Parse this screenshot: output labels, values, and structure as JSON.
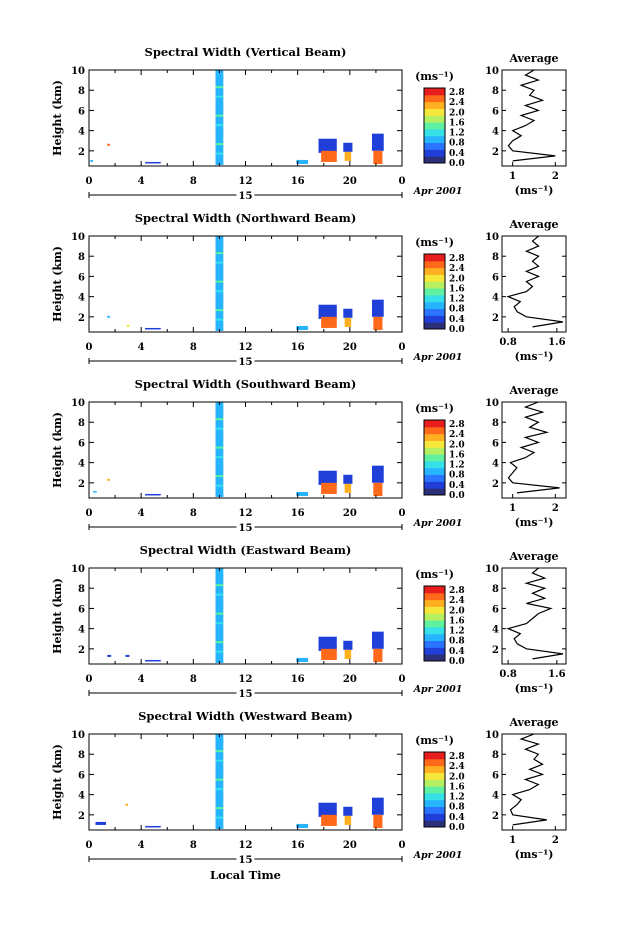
{
  "colorbar": {
    "unit": "(ms⁻¹)",
    "ticks": [
      "2.8",
      "2.4",
      "2.0",
      "1.6",
      "1.2",
      "0.8",
      "0.4",
      "0.0"
    ],
    "colors": [
      "#2b2f7a",
      "#1f3fd8",
      "#2a74ff",
      "#27b4ff",
      "#35e0e8",
      "#5ff0a0",
      "#b6f060",
      "#f6e83a",
      "#ffb020",
      "#ff6a1a",
      "#e81e1e"
    ]
  },
  "shared": {
    "y_label": "Height (km)",
    "x_ticks": [
      "0",
      "4",
      "8",
      "12",
      "16",
      "20",
      "0"
    ],
    "date_tick": "15",
    "date_label": "Apr 2001",
    "x_title": "Local Time",
    "avg_title": "Average",
    "avg_unit": "(ms⁻¹)"
  },
  "chart_data": [
    {
      "type": "heatmap",
      "title": "Spectral Width (Vertical Beam)",
      "ylabel": "Height (km)",
      "xlabel": "Local Time",
      "y_ticks": [
        "2",
        "4",
        "6",
        "8",
        "10"
      ],
      "ylim": [
        0.5,
        10
      ],
      "xlim": [
        0,
        24
      ],
      "x_ticks": [
        "0",
        "4",
        "8",
        "12",
        "16",
        "20",
        "0"
      ],
      "value_range": [
        0.0,
        3.0
      ],
      "blobs": [
        {
          "t0": 9.7,
          "t1": 10.3,
          "h0": 0.6,
          "h1": 10.0,
          "v": 0.9
        },
        {
          "t0": 0.1,
          "t1": 0.3,
          "h0": 0.9,
          "h1": 1.1,
          "v": 1.0
        },
        {
          "t0": 1.4,
          "t1": 1.6,
          "h0": 2.5,
          "h1": 2.7,
          "v": 2.6
        },
        {
          "t0": 4.3,
          "t1": 5.5,
          "h0": 0.8,
          "h1": 0.9,
          "v": 0.4
        },
        {
          "t0": 15.9,
          "t1": 16.8,
          "h0": 0.7,
          "h1": 1.1,
          "v": 1.0
        },
        {
          "t0": 17.6,
          "t1": 19.0,
          "h0": 1.8,
          "h1": 3.2,
          "v": 0.3
        },
        {
          "t0": 17.8,
          "t1": 19.0,
          "h0": 0.9,
          "h1": 2.0,
          "v": 2.5
        },
        {
          "t0": 19.5,
          "t1": 20.2,
          "h0": 1.9,
          "h1": 2.8,
          "v": 0.3
        },
        {
          "t0": 19.6,
          "t1": 20.1,
          "h0": 1.0,
          "h1": 1.9,
          "v": 2.2
        },
        {
          "t0": 21.7,
          "t1": 22.6,
          "h0": 2.0,
          "h1": 3.7,
          "v": 0.3
        },
        {
          "t0": 21.8,
          "t1": 22.5,
          "h0": 0.7,
          "h1": 2.0,
          "v": 2.6
        }
      ],
      "average": {
        "xlim": [
          0.75,
          2.25
        ],
        "x_ticks": [
          {
            "v": 1,
            "label": "1"
          },
          {
            "v": 2,
            "label": "2"
          }
        ],
        "heights": [
          1.0,
          1.5,
          2.0,
          2.5,
          3.0,
          3.5,
          4.0,
          4.5,
          5.0,
          5.5,
          6.0,
          6.5,
          7.0,
          7.5,
          8.0,
          8.5,
          9.0,
          9.5,
          10.0
        ],
        "values": [
          1.0,
          2.0,
          1.0,
          0.9,
          1.0,
          1.2,
          1.0,
          1.3,
          1.5,
          1.2,
          1.6,
          1.3,
          1.7,
          1.4,
          1.5,
          1.2,
          1.6,
          1.3,
          1.5
        ]
      }
    },
    {
      "type": "heatmap",
      "title": "Spectral Width (Northward Beam)",
      "ylabel": "Height (km)",
      "xlabel": "Local Time",
      "y_ticks": [
        "2",
        "4",
        "6",
        "8",
        "10"
      ],
      "ylim": [
        0.5,
        10
      ],
      "xlim": [
        0,
        24
      ],
      "x_ticks": [
        "0",
        "4",
        "8",
        "12",
        "16",
        "20",
        "0"
      ],
      "value_range": [
        0.0,
        3.0
      ],
      "blobs": [
        {
          "t0": 9.7,
          "t1": 10.3,
          "h0": 0.6,
          "h1": 10.0,
          "v": 0.9
        },
        {
          "t0": 1.4,
          "t1": 1.6,
          "h0": 1.9,
          "h1": 2.1,
          "v": 1.0
        },
        {
          "t0": 2.9,
          "t1": 3.1,
          "h0": 1.0,
          "h1": 1.2,
          "v": 2.0
        },
        {
          "t0": 4.3,
          "t1": 5.5,
          "h0": 0.8,
          "h1": 0.9,
          "v": 0.4
        },
        {
          "t0": 15.9,
          "t1": 16.8,
          "h0": 0.7,
          "h1": 1.1,
          "v": 1.0
        },
        {
          "t0": 17.6,
          "t1": 19.0,
          "h0": 1.8,
          "h1": 3.2,
          "v": 0.3
        },
        {
          "t0": 17.8,
          "t1": 19.0,
          "h0": 0.9,
          "h1": 2.0,
          "v": 2.5
        },
        {
          "t0": 19.5,
          "t1": 20.2,
          "h0": 1.9,
          "h1": 2.8,
          "v": 0.3
        },
        {
          "t0": 19.6,
          "t1": 20.1,
          "h0": 1.0,
          "h1": 1.9,
          "v": 2.2
        },
        {
          "t0": 21.7,
          "t1": 22.6,
          "h0": 2.0,
          "h1": 3.7,
          "v": 0.3
        },
        {
          "t0": 21.8,
          "t1": 22.5,
          "h0": 0.7,
          "h1": 2.0,
          "v": 2.6
        }
      ],
      "average": {
        "xlim": [
          0.7,
          1.75
        ],
        "x_ticks": [
          {
            "v": 0.8,
            "label": "0.8"
          },
          {
            "v": 1.6,
            "label": "1.6"
          }
        ],
        "heights": [
          1.0,
          1.5,
          2.0,
          2.5,
          3.0,
          3.5,
          4.0,
          4.5,
          5.0,
          5.5,
          6.0,
          6.5,
          7.0,
          7.5,
          8.0,
          8.5,
          9.0,
          9.5,
          10.0
        ],
        "values": [
          1.2,
          1.7,
          1.1,
          0.95,
          0.9,
          1.0,
          0.8,
          1.1,
          1.2,
          1.1,
          1.3,
          1.1,
          1.3,
          1.2,
          1.3,
          1.1,
          1.3,
          1.2,
          1.3
        ]
      }
    },
    {
      "type": "heatmap",
      "title": "Spectral Width (Southward Beam)",
      "ylabel": "Height (km)",
      "xlabel": "Local Time",
      "y_ticks": [
        "2",
        "4",
        "6",
        "8",
        "10"
      ],
      "ylim": [
        0.5,
        10
      ],
      "xlim": [
        0,
        24
      ],
      "x_ticks": [
        "0",
        "4",
        "8",
        "12",
        "16",
        "20",
        "0"
      ],
      "value_range": [
        0.0,
        3.0
      ],
      "blobs": [
        {
          "t0": 9.7,
          "t1": 10.3,
          "h0": 0.6,
          "h1": 10.0,
          "v": 0.9
        },
        {
          "t0": 0.3,
          "t1": 0.6,
          "h0": 1.1,
          "h1": 1.2,
          "v": 1.0
        },
        {
          "t0": 1.4,
          "t1": 1.6,
          "h0": 2.2,
          "h1": 2.4,
          "v": 2.3
        },
        {
          "t0": 4.3,
          "t1": 5.5,
          "h0": 0.8,
          "h1": 0.9,
          "v": 0.4
        },
        {
          "t0": 15.9,
          "t1": 16.8,
          "h0": 0.7,
          "h1": 1.1,
          "v": 1.0
        },
        {
          "t0": 17.6,
          "t1": 19.0,
          "h0": 1.8,
          "h1": 3.2,
          "v": 0.3
        },
        {
          "t0": 17.8,
          "t1": 19.0,
          "h0": 0.9,
          "h1": 2.0,
          "v": 2.5
        },
        {
          "t0": 19.5,
          "t1": 20.2,
          "h0": 1.9,
          "h1": 2.8,
          "v": 0.3
        },
        {
          "t0": 19.6,
          "t1": 20.1,
          "h0": 1.0,
          "h1": 1.9,
          "v": 2.2
        },
        {
          "t0": 21.7,
          "t1": 22.6,
          "h0": 2.0,
          "h1": 3.7,
          "v": 0.3
        },
        {
          "t0": 21.8,
          "t1": 22.5,
          "h0": 0.7,
          "h1": 2.0,
          "v": 2.6
        }
      ],
      "average": {
        "xlim": [
          0.75,
          2.25
        ],
        "x_ticks": [
          {
            "v": 1,
            "label": "1"
          },
          {
            "v": 2,
            "label": "2"
          }
        ],
        "heights": [
          1.0,
          1.5,
          2.0,
          2.5,
          3.0,
          3.5,
          4.0,
          4.5,
          5.0,
          5.5,
          6.0,
          6.5,
          7.0,
          7.5,
          8.0,
          8.5,
          9.0,
          9.5,
          10.0
        ],
        "values": [
          1.1,
          2.1,
          1.0,
          0.9,
          1.0,
          1.1,
          0.95,
          1.3,
          1.5,
          1.2,
          1.6,
          1.3,
          1.8,
          1.4,
          1.6,
          1.3,
          1.7,
          1.3,
          1.6
        ]
      }
    },
    {
      "type": "heatmap",
      "title": "Spectral Width (Eastward Beam)",
      "ylabel": "Height (km)",
      "xlabel": "Local Time",
      "y_ticks": [
        "2",
        "4",
        "6",
        "8",
        "10"
      ],
      "ylim": [
        0.5,
        10
      ],
      "xlim": [
        0,
        24
      ],
      "x_ticks": [
        "0",
        "4",
        "8",
        "12",
        "16",
        "20",
        "0"
      ],
      "value_range": [
        0.0,
        3.0
      ],
      "blobs": [
        {
          "t0": 9.7,
          "t1": 10.3,
          "h0": 0.6,
          "h1": 10.0,
          "v": 0.9
        },
        {
          "t0": 1.4,
          "t1": 1.7,
          "h0": 1.2,
          "h1": 1.4,
          "v": 0.3
        },
        {
          "t0": 2.8,
          "t1": 3.1,
          "h0": 1.2,
          "h1": 1.4,
          "v": 0.3
        },
        {
          "t0": 4.3,
          "t1": 5.5,
          "h0": 0.8,
          "h1": 0.9,
          "v": 0.4
        },
        {
          "t0": 15.9,
          "t1": 16.8,
          "h0": 0.7,
          "h1": 1.1,
          "v": 1.0
        },
        {
          "t0": 17.6,
          "t1": 19.0,
          "h0": 1.8,
          "h1": 3.2,
          "v": 0.3
        },
        {
          "t0": 17.8,
          "t1": 19.0,
          "h0": 0.9,
          "h1": 2.0,
          "v": 2.5
        },
        {
          "t0": 19.5,
          "t1": 20.2,
          "h0": 1.9,
          "h1": 2.8,
          "v": 0.3
        },
        {
          "t0": 19.6,
          "t1": 20.1,
          "h0": 1.0,
          "h1": 1.9,
          "v": 2.2
        },
        {
          "t0": 21.7,
          "t1": 22.6,
          "h0": 2.0,
          "h1": 3.7,
          "v": 0.3
        },
        {
          "t0": 21.8,
          "t1": 22.5,
          "h0": 0.7,
          "h1": 2.0,
          "v": 2.6
        }
      ],
      "average": {
        "xlim": [
          0.7,
          1.75
        ],
        "x_ticks": [
          {
            "v": 0.8,
            "label": "0.8"
          },
          {
            "v": 1.6,
            "label": "1.6"
          }
        ],
        "heights": [
          1.0,
          1.5,
          2.0,
          2.5,
          3.0,
          3.5,
          4.0,
          4.5,
          5.0,
          5.5,
          6.0,
          6.5,
          7.0,
          7.5,
          8.0,
          8.5,
          9.0,
          9.5,
          10.0
        ],
        "values": [
          1.2,
          1.7,
          1.1,
          0.95,
          0.9,
          1.0,
          0.8,
          1.1,
          1.2,
          1.3,
          1.5,
          1.1,
          1.4,
          1.2,
          1.4,
          1.1,
          1.4,
          1.2,
          1.3
        ]
      }
    },
    {
      "type": "heatmap",
      "title": "Spectral Width (Westward Beam)",
      "ylabel": "Height (km)",
      "xlabel": "Local Time",
      "y_ticks": [
        "2",
        "4",
        "6",
        "8",
        "10"
      ],
      "ylim": [
        0.5,
        10
      ],
      "xlim": [
        0,
        24
      ],
      "x_ticks": [
        "0",
        "4",
        "8",
        "12",
        "16",
        "20",
        "0"
      ],
      "value_range": [
        0.0,
        3.0
      ],
      "blobs": [
        {
          "t0": 9.7,
          "t1": 10.3,
          "h0": 0.6,
          "h1": 10.0,
          "v": 0.9
        },
        {
          "t0": 0.5,
          "t1": 1.3,
          "h0": 1.0,
          "h1": 1.3,
          "v": 0.3
        },
        {
          "t0": 2.8,
          "t1": 3.0,
          "h0": 2.9,
          "h1": 3.1,
          "v": 2.3
        },
        {
          "t0": 4.3,
          "t1": 5.5,
          "h0": 0.8,
          "h1": 0.9,
          "v": 0.4
        },
        {
          "t0": 15.9,
          "t1": 16.8,
          "h0": 0.7,
          "h1": 1.1,
          "v": 1.0
        },
        {
          "t0": 17.6,
          "t1": 19.0,
          "h0": 1.8,
          "h1": 3.2,
          "v": 0.3
        },
        {
          "t0": 17.8,
          "t1": 19.0,
          "h0": 0.9,
          "h1": 2.0,
          "v": 2.5
        },
        {
          "t0": 19.5,
          "t1": 20.2,
          "h0": 1.9,
          "h1": 2.8,
          "v": 0.3
        },
        {
          "t0": 19.6,
          "t1": 20.1,
          "h0": 1.0,
          "h1": 1.9,
          "v": 2.2
        },
        {
          "t0": 21.7,
          "t1": 22.6,
          "h0": 2.0,
          "h1": 3.7,
          "v": 0.3
        },
        {
          "t0": 21.8,
          "t1": 22.5,
          "h0": 0.7,
          "h1": 2.0,
          "v": 2.6
        }
      ],
      "average": {
        "xlim": [
          0.75,
          2.25
        ],
        "x_ticks": [
          {
            "v": 1,
            "label": "1"
          },
          {
            "v": 2,
            "label": "2"
          }
        ],
        "heights": [
          1.0,
          1.5,
          2.0,
          2.5,
          3.0,
          3.5,
          4.0,
          4.5,
          5.0,
          5.5,
          6.0,
          6.5,
          7.0,
          7.5,
          8.0,
          8.5,
          9.0,
          9.5,
          10.0
        ],
        "values": [
          1.0,
          1.8,
          1.0,
          0.95,
          1.1,
          1.2,
          1.0,
          1.4,
          1.6,
          1.3,
          1.7,
          1.4,
          1.7,
          1.5,
          1.6,
          1.3,
          1.6,
          1.2,
          1.5
        ]
      }
    }
  ]
}
